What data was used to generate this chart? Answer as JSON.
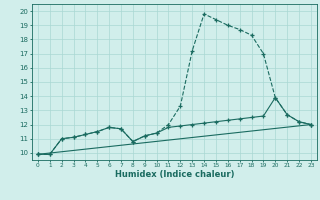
{
  "xlabel": "Humidex (Indice chaleur)",
  "bg_color": "#d1eeeb",
  "grid_color": "#aad8d3",
  "line_color": "#1a6b60",
  "xlim": [
    -0.5,
    23.5
  ],
  "ylim": [
    9.5,
    20.5
  ],
  "xticks": [
    0,
    1,
    2,
    3,
    4,
    5,
    6,
    7,
    8,
    9,
    10,
    11,
    12,
    13,
    14,
    15,
    16,
    17,
    18,
    19,
    20,
    21,
    22,
    23
  ],
  "yticks": [
    10,
    11,
    12,
    13,
    14,
    15,
    16,
    17,
    18,
    19,
    20
  ],
  "line1_x": [
    0,
    1,
    2,
    3,
    4,
    5,
    6,
    7,
    8,
    9,
    10,
    11,
    12,
    13,
    14,
    15,
    16,
    17,
    18,
    19,
    20,
    21,
    22,
    23
  ],
  "line1_y": [
    9.9,
    9.9,
    11.0,
    11.1,
    11.3,
    11.5,
    11.8,
    11.7,
    10.8,
    11.2,
    11.4,
    12.0,
    13.3,
    17.2,
    19.8,
    19.4,
    19.0,
    18.7,
    18.3,
    17.0,
    13.9,
    12.7,
    12.2,
    12.0
  ],
  "line2_x": [
    0,
    1,
    2,
    3,
    4,
    5,
    6,
    7,
    8,
    9,
    10,
    11,
    12,
    13,
    14,
    15,
    16,
    17,
    18,
    19,
    20,
    21,
    22,
    23
  ],
  "line2_y": [
    9.9,
    9.9,
    11.0,
    11.1,
    11.3,
    11.5,
    11.8,
    11.7,
    10.8,
    11.2,
    11.4,
    11.8,
    11.9,
    12.0,
    12.1,
    12.2,
    12.3,
    12.4,
    12.5,
    12.6,
    13.9,
    12.7,
    12.2,
    12.0
  ],
  "line3_x": [
    0,
    23
  ],
  "line3_y": [
    9.9,
    12.0
  ]
}
